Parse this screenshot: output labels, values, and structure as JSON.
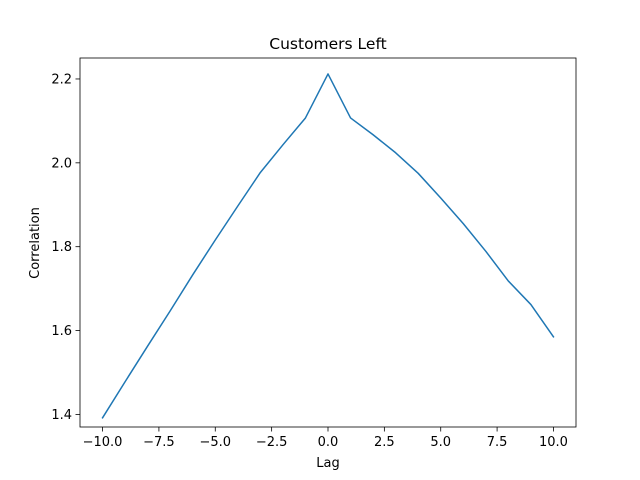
{
  "chart_data": {
    "type": "line",
    "title": "Customers Left",
    "xlabel": "Lag",
    "ylabel": "Correlation",
    "xlim": [
      -11,
      11
    ],
    "ylim": [
      1.37,
      2.25
    ],
    "grid": false,
    "xticks": [
      -10.0,
      -7.5,
      -5.0,
      -2.5,
      0.0,
      2.5,
      5.0,
      7.5,
      10.0
    ],
    "xtick_labels": [
      "−10.0",
      "−7.5",
      "−5.0",
      "−2.5",
      "0.0",
      "2.5",
      "5.0",
      "7.5",
      "10.0"
    ],
    "yticks": [
      1.4,
      1.6,
      1.8,
      2.0,
      2.2
    ],
    "ytick_labels": [
      "1.4",
      "1.6",
      "1.8",
      "2.0",
      "2.2"
    ],
    "series": [
      {
        "color": "#1f77b4",
        "x": [
          -10,
          -9,
          -8,
          -7,
          -6,
          -5,
          -4,
          -3,
          -2,
          -1,
          0,
          1,
          2,
          3,
          4,
          5,
          6,
          7,
          8,
          9,
          10
        ],
        "y": [
          1.392,
          1.478,
          1.563,
          1.647,
          1.733,
          1.816,
          1.897,
          1.977,
          2.043,
          2.107,
          2.212,
          2.107,
          2.067,
          2.024,
          1.975,
          1.916,
          1.855,
          1.789,
          1.718,
          1.662,
          1.585
        ]
      }
    ]
  }
}
